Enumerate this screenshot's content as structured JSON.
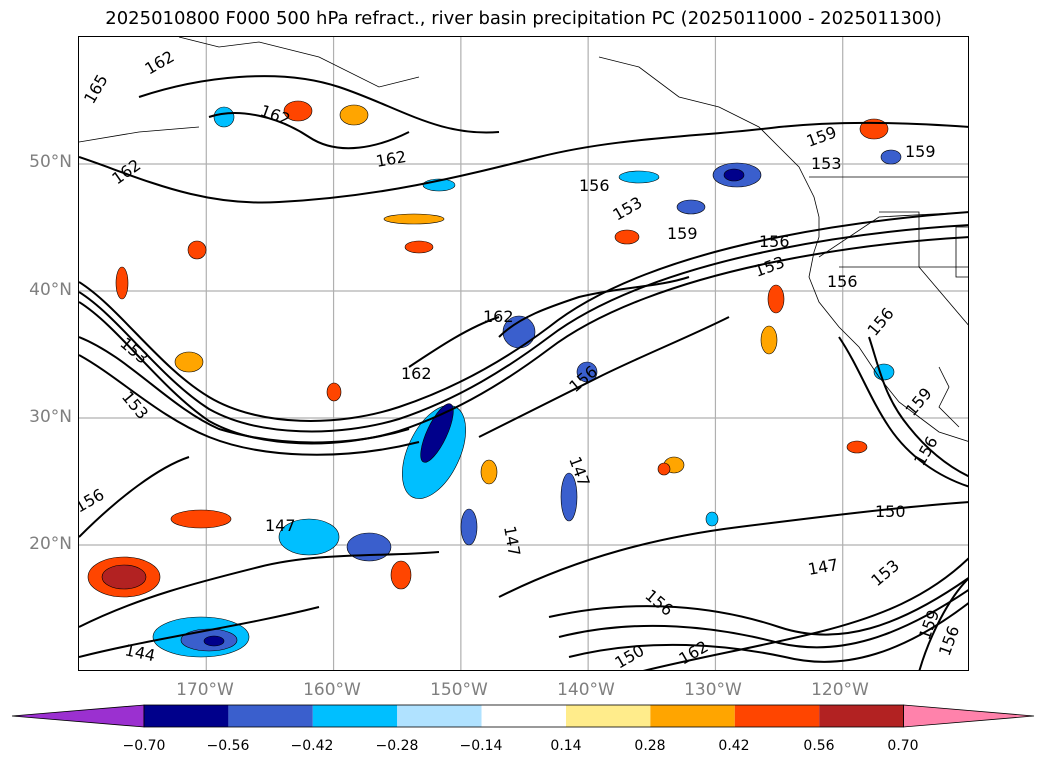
{
  "title": "2025010800 F000 500 hPa refract., river basin precipitation PC (2025011000 - 2025011300)",
  "map": {
    "projection": "cylindrical",
    "extent_lon": [
      -180,
      -110
    ],
    "extent_lat": [
      10,
      60
    ],
    "lat_ticks": [
      "20°N",
      "30°N",
      "40°N",
      "50°N"
    ],
    "lat_tick_values": [
      20,
      30,
      40,
      50
    ],
    "lon_ticks": [
      "170°W",
      "160°W",
      "150°W",
      "140°W",
      "130°W",
      "120°W"
    ],
    "lon_tick_values": [
      -170,
      -160,
      -150,
      -140,
      -130,
      -120
    ],
    "grid": true,
    "contour_labels": [
      "162",
      "165",
      "162",
      "162",
      "162",
      "162",
      "153",
      "153",
      "156",
      "153",
      "159",
      "159",
      "153",
      "159",
      "156",
      "162",
      "156",
      "147",
      "147",
      "156",
      "147",
      "150",
      "147",
      "150",
      "156",
      "144",
      "153",
      "153",
      "156",
      "159",
      "162",
      "159",
      "156",
      "156",
      "156"
    ]
  },
  "colorbar": {
    "ticks": [
      "−0.70",
      "−0.56",
      "−0.42",
      "−0.28",
      "−0.14",
      "0.14",
      "0.28",
      "0.42",
      "0.56",
      "0.70"
    ],
    "colors": [
      "#9b30d0",
      "#00008b",
      "#3a5fcd",
      "#00bfff",
      "#b0e2ff",
      "#ffffff",
      "#ffec8b",
      "#ffa500",
      "#ff4500",
      "#b22222",
      "#ff82ab"
    ]
  }
}
